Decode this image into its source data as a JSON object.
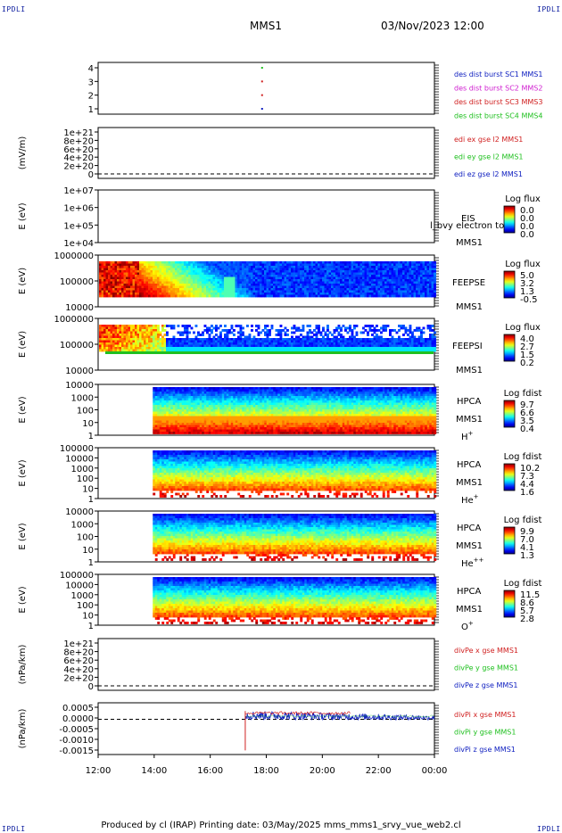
{
  "header": {
    "corner_label": "IPDLI",
    "spacecraft": "MMS1",
    "datetime": "03/Nov/2023 12:00"
  },
  "footer": {
    "text": "Produced by cl (IRAP)   Printing date: 03/May/2025   mms_mms1_srvy_vue_web2.cl"
  },
  "colors": {
    "blue": "#1020c0",
    "magenta": "#d020d0",
    "red": "#d02020",
    "green": "#20c020",
    "background": "#ffffff"
  },
  "chart_data": {
    "type": "heatmap",
    "time_axis": {
      "ticks": [
        "12:00",
        "14:00",
        "16:00",
        "18:00",
        "20:00",
        "22:00",
        "00:00"
      ],
      "range_hours": [
        12,
        24
      ]
    },
    "panels": [
      {
        "id": "burst",
        "kind": "timeline",
        "yticks": [
          "4",
          "3",
          "2",
          "1"
        ],
        "legend": [
          {
            "text": "des dist burst SC1 MMS1",
            "color": "blue"
          },
          {
            "text": "des dist burst SC2 MMS2",
            "color": "magenta"
          },
          {
            "text": "des dist burst SC3 MMS3",
            "color": "red"
          },
          {
            "text": "des dist burst SC4 MMS4",
            "color": "green"
          }
        ],
        "marks": [
          {
            "time_h": 17.85,
            "level": 4,
            "color": "green"
          },
          {
            "time_h": 17.85,
            "level": 3,
            "color": "red"
          },
          {
            "time_h": 17.85,
            "level": 2,
            "color": "red"
          },
          {
            "time_h": 17.85,
            "level": 1,
            "color": "blue"
          }
        ]
      },
      {
        "id": "edi",
        "kind": "line",
        "ylabel": "(mV/m)",
        "yticks": [
          "1e+21",
          "8e+20",
          "6e+20",
          "4e+20",
          "2e+20",
          "0"
        ],
        "legend": [
          {
            "text": "edi ex gse l2 MMS1",
            "color": "red"
          },
          {
            "text": "edi ey gse l2 MMS1",
            "color": "green"
          },
          {
            "text": "edi ez gse l2 MMS1",
            "color": "blue"
          }
        ]
      },
      {
        "id": "eis",
        "kind": "spectrogram",
        "ylabel": "E (eV)",
        "yticks": [
          "1e+07",
          "1e+06",
          "1e+05",
          "1e+04"
        ],
        "instrument": "EIS",
        "spacecraft": "MMS1",
        "extra_label": "l_bvy electron to",
        "colorbar": {
          "title": "Log flux",
          "ticks": [
            "0.0",
            "0.0",
            "0.0",
            "0.0"
          ]
        }
      },
      {
        "id": "feepse",
        "kind": "spectrogram",
        "ylabel": "E (eV)",
        "yticks": [
          "1000000",
          "100000",
          "10000"
        ],
        "instrument": "FEEPSE",
        "spacecraft": "MMS1",
        "colorbar": {
          "title": "Log flux",
          "ticks": [
            "5.0",
            "3.2",
            "1.3",
            "-0.5"
          ]
        }
      },
      {
        "id": "feepsi",
        "kind": "spectrogram",
        "ylabel": "E (eV)",
        "yticks": [
          "1000000",
          "100000",
          "10000"
        ],
        "instrument": "FEEPSI",
        "spacecraft": "MMS1",
        "colorbar": {
          "title": "Log flux",
          "ticks": [
            "4.0",
            "2.7",
            "1.5",
            "0.2"
          ]
        }
      },
      {
        "id": "hpca_h",
        "kind": "spectrogram",
        "ylabel": "E (eV)",
        "yticks": [
          "10000",
          "1000",
          "100",
          "10",
          "1"
        ],
        "instrument": "HPCA",
        "spacecraft": "MMS1",
        "species": "H",
        "species_sup": "+",
        "colorbar": {
          "title": "Log fdist",
          "ticks": [
            "9.7",
            "6.6",
            "3.5",
            "0.4"
          ]
        }
      },
      {
        "id": "hpca_he",
        "kind": "spectrogram",
        "ylabel": "E (eV)",
        "yticks": [
          "100000",
          "10000",
          "1000",
          "100",
          "10",
          "1"
        ],
        "instrument": "HPCA",
        "spacecraft": "MMS1",
        "species": "He",
        "species_sup": "+",
        "colorbar": {
          "title": "Log fdist",
          "ticks": [
            "10.2",
            "7.3",
            "4.4",
            "1.6"
          ]
        }
      },
      {
        "id": "hpca_hepp",
        "kind": "spectrogram",
        "ylabel": "E (eV)",
        "yticks": [
          "10000",
          "1000",
          "100",
          "10",
          "1"
        ],
        "instrument": "HPCA",
        "spacecraft": "MMS1",
        "species": "He",
        "species_sup": "++",
        "colorbar": {
          "title": "Log fdist",
          "ticks": [
            "9.9",
            "7.0",
            "4.1",
            "1.3"
          ]
        }
      },
      {
        "id": "hpca_o",
        "kind": "spectrogram",
        "ylabel": "E (eV)",
        "yticks": [
          "100000",
          "10000",
          "1000",
          "100",
          "10",
          "1"
        ],
        "instrument": "HPCA",
        "spacecraft": "MMS1",
        "species": "O",
        "species_sup": "+",
        "colorbar": {
          "title": "Log fdist",
          "ticks": [
            "11.5",
            "8.6",
            "5.7",
            "2.8"
          ]
        }
      },
      {
        "id": "divpe",
        "kind": "line",
        "ylabel": "(nPa/km)",
        "yticks": [
          "1e+21",
          "8e+20",
          "6e+20",
          "4e+20",
          "2e+20",
          "0"
        ],
        "legend": [
          {
            "text": "divPe x gse MMS1",
            "color": "red"
          },
          {
            "text": "divPe y gse MMS1",
            "color": "green"
          },
          {
            "text": "divPe z gse MMS1",
            "color": "blue"
          }
        ]
      },
      {
        "id": "divpi",
        "kind": "line",
        "ylabel": "(nPa/km)",
        "yticks": [
          "0.0005",
          "0.0000",
          "-0.0005",
          "-0.0010",
          "-0.0015"
        ],
        "ylim": [
          -0.0017,
          0.0008
        ],
        "start_time_h": 17.25,
        "baseline": 0.0002,
        "legend": [
          {
            "text": "divPi x gse MMS1",
            "color": "red"
          },
          {
            "text": "divPi y gse MMS1",
            "color": "green"
          },
          {
            "text": "divPi z gse MMS1",
            "color": "blue"
          }
        ]
      }
    ]
  }
}
